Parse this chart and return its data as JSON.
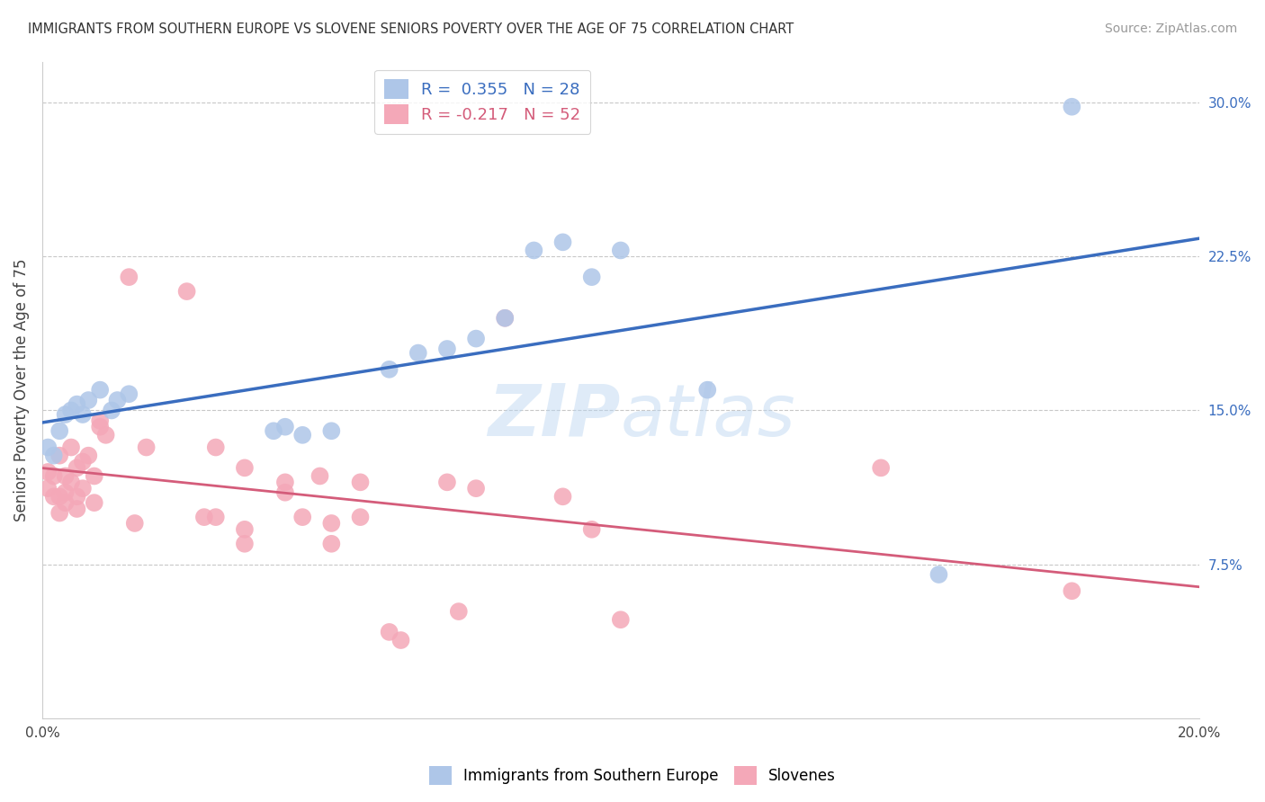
{
  "title": "IMMIGRANTS FROM SOUTHERN EUROPE VS SLOVENE SENIORS POVERTY OVER THE AGE OF 75 CORRELATION CHART",
  "source": "Source: ZipAtlas.com",
  "ylabel": "Seniors Poverty Over the Age of 75",
  "xlim": [
    0.0,
    0.2
  ],
  "ylim": [
    0.0,
    0.32
  ],
  "yticks": [
    0.075,
    0.15,
    0.225,
    0.3
  ],
  "ytick_labels": [
    "7.5%",
    "15.0%",
    "22.5%",
    "30.0%"
  ],
  "xticks": [
    0.0,
    0.04,
    0.08,
    0.12,
    0.16,
    0.2
  ],
  "xtick_labels": [
    "0.0%",
    "",
    "",
    "",
    "",
    "20.0%"
  ],
  "blue_R": 0.355,
  "blue_N": 28,
  "pink_R": -0.217,
  "pink_N": 52,
  "blue_color": "#aec6e8",
  "pink_color": "#f4a8b8",
  "blue_line_color": "#3a6dbf",
  "pink_line_color": "#d45c7a",
  "watermark": "ZIPatlas",
  "blue_points": [
    [
      0.001,
      0.132
    ],
    [
      0.002,
      0.128
    ],
    [
      0.003,
      0.14
    ],
    [
      0.004,
      0.148
    ],
    [
      0.005,
      0.15
    ],
    [
      0.006,
      0.153
    ],
    [
      0.007,
      0.148
    ],
    [
      0.008,
      0.155
    ],
    [
      0.01,
      0.16
    ],
    [
      0.012,
      0.15
    ],
    [
      0.013,
      0.155
    ],
    [
      0.015,
      0.158
    ],
    [
      0.04,
      0.14
    ],
    [
      0.042,
      0.142
    ],
    [
      0.045,
      0.138
    ],
    [
      0.05,
      0.14
    ],
    [
      0.06,
      0.17
    ],
    [
      0.065,
      0.178
    ],
    [
      0.07,
      0.18
    ],
    [
      0.075,
      0.185
    ],
    [
      0.08,
      0.195
    ],
    [
      0.085,
      0.228
    ],
    [
      0.09,
      0.232
    ],
    [
      0.095,
      0.215
    ],
    [
      0.1,
      0.228
    ],
    [
      0.115,
      0.16
    ],
    [
      0.155,
      0.07
    ],
    [
      0.178,
      0.298
    ]
  ],
  "pink_points": [
    [
      0.001,
      0.12
    ],
    [
      0.001,
      0.112
    ],
    [
      0.002,
      0.108
    ],
    [
      0.002,
      0.118
    ],
    [
      0.003,
      0.128
    ],
    [
      0.003,
      0.108
    ],
    [
      0.003,
      0.1
    ],
    [
      0.004,
      0.118
    ],
    [
      0.004,
      0.11
    ],
    [
      0.004,
      0.105
    ],
    [
      0.005,
      0.132
    ],
    [
      0.005,
      0.115
    ],
    [
      0.006,
      0.122
    ],
    [
      0.006,
      0.108
    ],
    [
      0.006,
      0.102
    ],
    [
      0.007,
      0.125
    ],
    [
      0.007,
      0.112
    ],
    [
      0.008,
      0.128
    ],
    [
      0.009,
      0.118
    ],
    [
      0.009,
      0.105
    ],
    [
      0.01,
      0.145
    ],
    [
      0.01,
      0.142
    ],
    [
      0.011,
      0.138
    ],
    [
      0.015,
      0.215
    ],
    [
      0.016,
      0.095
    ],
    [
      0.018,
      0.132
    ],
    [
      0.025,
      0.208
    ],
    [
      0.028,
      0.098
    ],
    [
      0.03,
      0.132
    ],
    [
      0.03,
      0.098
    ],
    [
      0.035,
      0.122
    ],
    [
      0.035,
      0.092
    ],
    [
      0.035,
      0.085
    ],
    [
      0.042,
      0.115
    ],
    [
      0.042,
      0.11
    ],
    [
      0.045,
      0.098
    ],
    [
      0.048,
      0.118
    ],
    [
      0.05,
      0.095
    ],
    [
      0.05,
      0.085
    ],
    [
      0.055,
      0.115
    ],
    [
      0.055,
      0.098
    ],
    [
      0.06,
      0.042
    ],
    [
      0.062,
      0.038
    ],
    [
      0.07,
      0.115
    ],
    [
      0.072,
      0.052
    ],
    [
      0.075,
      0.112
    ],
    [
      0.08,
      0.195
    ],
    [
      0.09,
      0.108
    ],
    [
      0.095,
      0.092
    ],
    [
      0.1,
      0.048
    ],
    [
      0.145,
      0.122
    ],
    [
      0.178,
      0.062
    ]
  ],
  "background_color": "#ffffff",
  "grid_color": "#c8c8c8"
}
